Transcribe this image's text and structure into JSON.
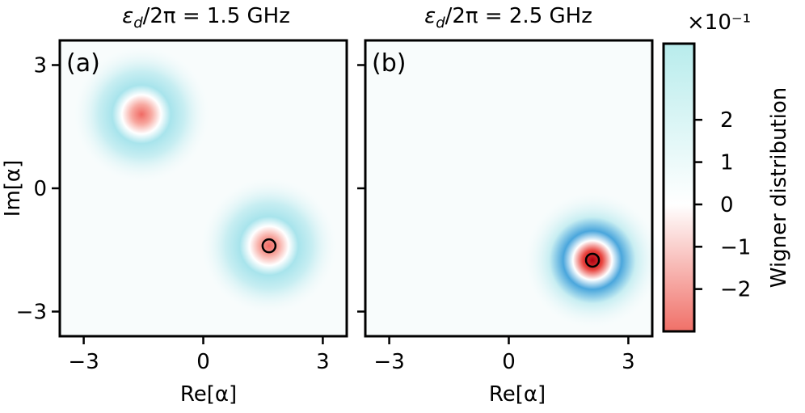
{
  "chart_data": [
    {
      "type": "heatmap",
      "panel_label": "(a)",
      "title": "ε_d/2π = 1.5 GHz",
      "xlabel": "Re[α]",
      "ylabel": "Im[α]",
      "xlim": [
        -3.6,
        3.6
      ],
      "ylim": [
        -3.6,
        3.6
      ],
      "xticks": [
        -3,
        0,
        3
      ],
      "yticks": [
        -3,
        0,
        3
      ],
      "xtick_labels": [
        "−3",
        "0",
        "3"
      ],
      "ytick_labels": [
        "−3",
        "0",
        "3"
      ],
      "blobs": [
        {
          "x": -1.55,
          "y": 1.8,
          "center_value": -0.18,
          "ring_value": 0.09
        },
        {
          "x": 1.65,
          "y": -1.4,
          "center_value": -0.12,
          "ring_value": 0.12
        }
      ],
      "marker": {
        "x": 1.65,
        "y": -1.4
      }
    },
    {
      "type": "heatmap",
      "panel_label": "(b)",
      "title": "ε_d/2π = 2.5 GHz",
      "xlabel": "Re[α]",
      "ylabel": "",
      "xlim": [
        -3.6,
        3.6
      ],
      "ylim": [
        -3.6,
        3.6
      ],
      "xticks": [
        -3,
        0,
        3
      ],
      "yticks": [
        -3,
        0,
        3
      ],
      "xtick_labels": [
        "−3",
        "0",
        "3"
      ],
      "ytick_labels": [],
      "blobs": [
        {
          "x": 2.1,
          "y": -1.75,
          "center_value": -0.3,
          "ring_value": 0.26
        }
      ],
      "marker": {
        "x": 2.1,
        "y": -1.75
      }
    }
  ],
  "colorbar": {
    "label": "Wigner distribution",
    "scale_label": "×10⁻¹",
    "vmin": -0.3,
    "vmax": 0.38,
    "ticks": [
      -2,
      -1,
      0,
      1,
      2
    ],
    "tick_labels": [
      "−2",
      "−1",
      "0",
      "1",
      "2"
    ],
    "negative_color": "#f07068",
    "positive_color": "#b8ecec",
    "ring_color": "#4aa6dc",
    "zero_color": "#ffffff"
  }
}
